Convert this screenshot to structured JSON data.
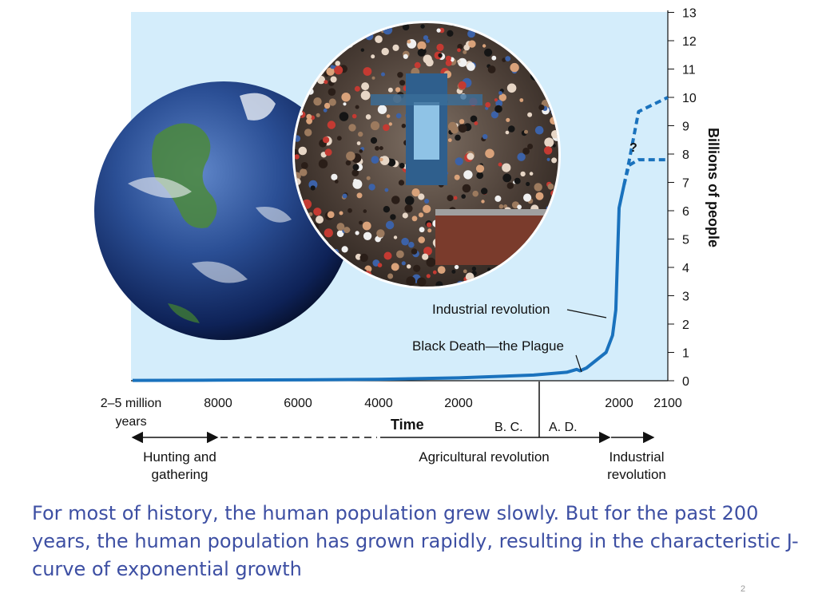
{
  "chart_data": {
    "type": "line",
    "title": "",
    "ylabel": "Billions of people",
    "xlabel": "Time",
    "ylim": [
      0,
      13
    ],
    "y_ticks": [
      "0",
      "1",
      "2",
      "3",
      "4",
      "5",
      "6",
      "7",
      "8",
      "9",
      "10",
      "11",
      "12",
      "13"
    ],
    "x_ticks": [
      "2–5 million years",
      "8000",
      "6000",
      "4000",
      "2000",
      "2000",
      "2100"
    ],
    "era_labels": {
      "bc": "B. C.",
      "ad": "A. D."
    },
    "series": [
      {
        "values": [
          {
            "x": "2–5 million years",
            "y": 0.01
          },
          {
            "x": "8000 B.C.",
            "y": 0.02
          },
          {
            "x": "6000 B.C.",
            "y": 0.03
          },
          {
            "x": "4000 B.C.",
            "y": 0.05
          },
          {
            "x": "2000 B.C.",
            "y": 0.1
          },
          {
            "x": "0",
            "y": 0.2
          },
          {
            "x": "1000 A.D.",
            "y": 0.3
          },
          {
            "x": "1300 A.D.",
            "y": 0.4
          },
          {
            "x": "1400 A.D.",
            "y": 0.35
          },
          {
            "x": "1500 A.D.",
            "y": 0.45
          },
          {
            "x": "1800 A.D.",
            "y": 1.0
          },
          {
            "x": "1900 A.D.",
            "y": 1.6
          },
          {
            "x": "1950 A.D.",
            "y": 2.5
          },
          {
            "x": "2000 A.D.",
            "y": 6.1
          },
          {
            "x": "2010 A.D.",
            "y": 6.9
          }
        ]
      }
    ],
    "projections": [
      {
        "label": "",
        "values": [
          {
            "x": "2020 A.D.",
            "y": 7.7
          },
          {
            "x": "2040 A.D.",
            "y": 9.5
          },
          {
            "x": "2100 A.D.",
            "y": 10.0
          }
        ]
      },
      {
        "label": "",
        "values": [
          {
            "x": "2020 A.D.",
            "y": 7.6
          },
          {
            "x": "2040 A.D.",
            "y": 7.8
          },
          {
            "x": "2100 A.D.",
            "y": 7.8
          }
        ]
      }
    ],
    "question_mark": "?",
    "annotations": [
      "Industrial revolution",
      "Black Death—the Plague"
    ],
    "periods": [
      {
        "label": "Hunting and gathering"
      },
      {
        "label": "Agricultural revolution"
      },
      {
        "label": "Industrial revolution"
      }
    ],
    "grid": false
  },
  "caption": "For most of history, the human population grew slowly. But for the past 200 years, the human population has grown rapidly, resulting in the characteristic J-curve of exponential growth",
  "slide_number": "2",
  "colors": {
    "panel_bg": "#d4edfb",
    "curve": "#1a72bd",
    "caption": "#3d4fa3",
    "text": "#222222"
  }
}
